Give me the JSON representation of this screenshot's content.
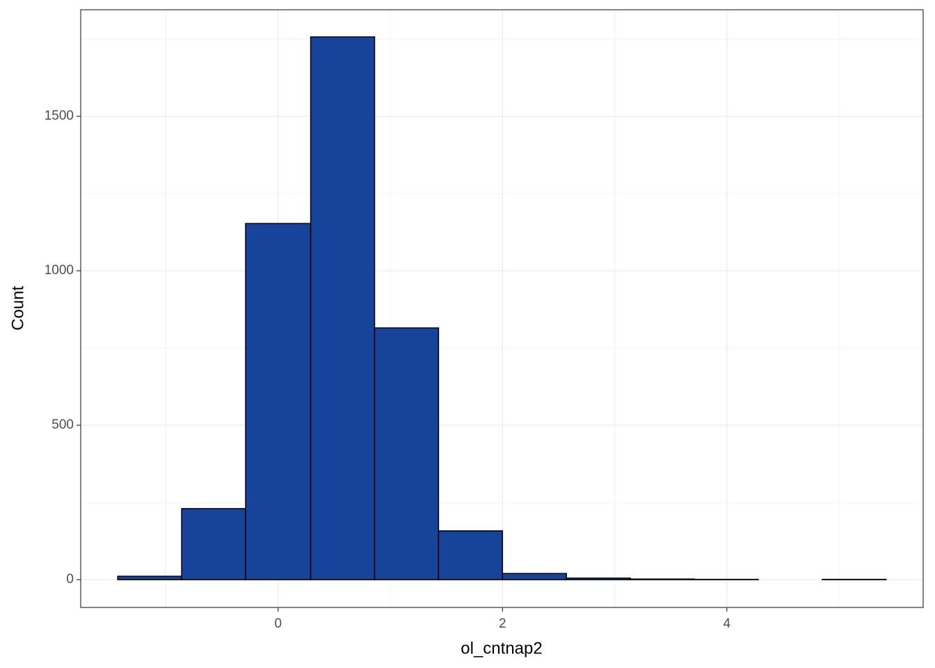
{
  "chart_data": {
    "type": "histogram",
    "x_label": "ol_cntnap2",
    "y_label": "Count",
    "bins": [
      -1.43,
      -0.86,
      -0.29,
      0.29,
      0.86,
      1.43,
      2.0,
      2.57,
      3.14,
      3.71,
      4.28,
      4.85,
      5.42
    ],
    "values": [
      11,
      230,
      1153,
      1757,
      815,
      158,
      20,
      5,
      2,
      1,
      0,
      1
    ],
    "color": "#17439b",
    "edgecolor": "#000000",
    "xlim": [
      -1.76,
      5.75
    ],
    "xticks": [
      0,
      2,
      4
    ],
    "ylim": [
      -90,
      1845
    ],
    "yticks": [
      0,
      500,
      1000,
      1500
    ],
    "grid": true,
    "minor_grid": true
  }
}
